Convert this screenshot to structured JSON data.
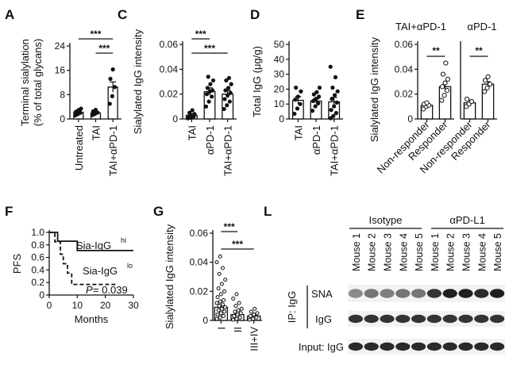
{
  "chart_data": [
    {
      "panel": "A",
      "type": "bar",
      "ylabel": "Terminal sialylation",
      "ylabel2": "(% of total glycans)",
      "ylim": [
        0,
        24
      ],
      "yticks": [
        0,
        8,
        16,
        24
      ],
      "tick_labels": [
        "0",
        "8",
        "16",
        "24"
      ],
      "categories": [
        "Untreated",
        "TAI",
        "TAI+αPD-1"
      ],
      "values": [
        2.2,
        2.0,
        10.5
      ],
      "errors": [
        0.4,
        0.4,
        1.7
      ],
      "points": [
        [
          1.2,
          1.6,
          2.0,
          2.4,
          2.9,
          3.4,
          1.8,
          2.6
        ],
        [
          1.3,
          1.7,
          2.1,
          2.5,
          3.0
        ],
        [
          5.0,
          7.5,
          10.5,
          13.2,
          16.3
        ]
      ],
      "comparisons": [
        {
          "pair": [
            0,
            2
          ],
          "label": "***"
        },
        {
          "pair": [
            1,
            2
          ],
          "label": "***"
        }
      ]
    },
    {
      "panel": "C",
      "type": "bar",
      "ylabel": "Sialylated IgG intensity",
      "ylim": [
        0,
        0.06
      ],
      "yticks": [
        0,
        0.02,
        0.04,
        0.06
      ],
      "tick_labels": [
        "0",
        "0.02",
        "0.04",
        "0.06"
      ],
      "categories": [
        "TAI",
        "αPD-1",
        "TAI+αPD-1"
      ],
      "values": [
        0.003,
        0.022,
        0.02
      ],
      "errors": [
        0.001,
        0.003,
        0.003
      ],
      "points": [
        [
          0.0005,
          0.001,
          0.002,
          0.002,
          0.003,
          0.004,
          0.005,
          0.007
        ],
        [
          0.01,
          0.014,
          0.018,
          0.02,
          0.022,
          0.023,
          0.025,
          0.028,
          0.031,
          0.034
        ],
        [
          0.008,
          0.011,
          0.014,
          0.016,
          0.019,
          0.021,
          0.023,
          0.025,
          0.028,
          0.031,
          0.033
        ]
      ],
      "comparisons": [
        {
          "pair": [
            0,
            1
          ],
          "label": "***"
        },
        {
          "pair": [
            0,
            2
          ],
          "label": "***"
        }
      ]
    },
    {
      "panel": "D",
      "type": "bar",
      "ylabel": "Total IgG (μg/g)",
      "ylim": [
        0,
        50
      ],
      "yticks": [
        0,
        10,
        20,
        30,
        40,
        50
      ],
      "tick_labels": [
        "0",
        "10",
        "20",
        "30",
        "40",
        "50"
      ],
      "categories": [
        "TAI",
        "αPD-1",
        "TAI+αPD-1"
      ],
      "values": [
        12.5,
        12.0,
        11.5
      ],
      "errors": [
        2.5,
        1.5,
        3.0
      ],
      "points": [
        [
          3.5,
          7.0,
          10.0,
          13.0,
          15.0,
          18.5,
          21.0
        ],
        [
          5.5,
          8.5,
          10.5,
          12.0,
          13.5,
          15.0,
          16.5,
          18.0,
          21.0
        ],
        [
          0.5,
          2.0,
          4.0,
          6.0,
          8.5,
          11.0,
          13.5,
          16.0,
          18.5,
          21.0,
          28.0,
          35.0
        ]
      ]
    },
    {
      "panel": "E",
      "type": "bar",
      "ylabel": "Sialylated IgG intensity",
      "ylim": [
        0,
        0.06
      ],
      "yticks": [
        0,
        0.02,
        0.04,
        0.06
      ],
      "tick_labels": [
        "0",
        "0.02",
        "0.04",
        "0.06"
      ],
      "groups": [
        {
          "title": "TAI+αPD-1",
          "categories": [
            "Non-responder",
            "Responder"
          ],
          "values": [
            0.011,
            0.026
          ],
          "errors": [
            0.001,
            0.003
          ],
          "points": [
            [
              0.008,
              0.01,
              0.011,
              0.012,
              0.013
            ],
            [
              0.015,
              0.019,
              0.023,
              0.026,
              0.029,
              0.032,
              0.036,
              0.045
            ]
          ],
          "comparison": "**"
        },
        {
          "title": "αPD-1",
          "categories": [
            "Non-responder",
            "Responder"
          ],
          "values": [
            0.013,
            0.028
          ],
          "errors": [
            0.002,
            0.002
          ],
          "points": [
            [
              0.01,
              0.012,
              0.014,
              0.016
            ],
            [
              0.022,
              0.025,
              0.028,
              0.031,
              0.034
            ]
          ],
          "comparison": "**"
        }
      ]
    },
    {
      "panel": "F",
      "type": "line",
      "ylabel": "PFS",
      "xlabel": "Months",
      "xlim": [
        0,
        30
      ],
      "ylim": [
        0,
        1.0
      ],
      "xticks": [
        0,
        10,
        20,
        30
      ],
      "xtick_labels": [
        "0",
        "10",
        "20",
        "30"
      ],
      "yticks": [
        0,
        0.2,
        0.4,
        0.6,
        0.8,
        1.0
      ],
      "ytick_labels": [
        "0",
        "0.2",
        "0.4",
        "0.6",
        "0.8",
        "1.0"
      ],
      "series": [
        {
          "name": "Sia-IgG",
          "sup": "hi",
          "style": "solid",
          "x": [
            0,
            3,
            3,
            10,
            10,
            30
          ],
          "y": [
            1.0,
            1.0,
            0.86,
            0.86,
            0.71,
            0.71
          ]
        },
        {
          "name": "Sia-IgG",
          "sup": "lo",
          "style": "dashed",
          "x": [
            0,
            2,
            2,
            4,
            4,
            5,
            5,
            6.5,
            6.5,
            8,
            8,
            24
          ],
          "y": [
            1.0,
            1.0,
            0.85,
            0.85,
            0.65,
            0.65,
            0.5,
            0.5,
            0.35,
            0.35,
            0.17,
            0.17
          ]
        }
      ],
      "annotation": {
        "prefix": "P",
        "text": " = 0.039"
      }
    },
    {
      "panel": "G",
      "type": "bar",
      "ylabel": "Sialylated IgG intensity",
      "ylim": [
        0,
        0.06
      ],
      "yticks": [
        0,
        0.02,
        0.04,
        0.06
      ],
      "tick_labels": [
        "0",
        "0.02",
        "0.04",
        "0.06"
      ],
      "categories": [
        "I",
        "II",
        "III+IV"
      ],
      "values": [
        0.009,
        0.004,
        0.003
      ],
      "errors": [
        0.001,
        0.0005,
        0.0005
      ],
      "points": [
        [
          0.001,
          0.002,
          0.003,
          0.004,
          0.005,
          0.006,
          0.007,
          0.008,
          0.009,
          0.01,
          0.011,
          0.012,
          0.013,
          0.014,
          0.016,
          0.018,
          0.02,
          0.022,
          0.025,
          0.028,
          0.032,
          0.036,
          0.04,
          0.044
        ],
        [
          0.0005,
          0.001,
          0.002,
          0.003,
          0.004,
          0.005,
          0.006,
          0.007,
          0.008,
          0.01,
          0.012,
          0.015,
          0.018
        ],
        [
          0.0005,
          0.001,
          0.002,
          0.003,
          0.004,
          0.005,
          0.006,
          0.008
        ]
      ],
      "comparisons": [
        {
          "pair": [
            0,
            1
          ],
          "label": "***"
        },
        {
          "pair": [
            0,
            2
          ],
          "label": "***"
        }
      ]
    },
    {
      "panel": "L",
      "type": "table",
      "groups": [
        {
          "label": "Isotype",
          "lanes": 5
        },
        {
          "label": "αPD-L1",
          "lanes": 5
        }
      ],
      "lanes": [
        "Mouse 1",
        "Mouse 2",
        "Mouse 3",
        "Mouse 4",
        "Mouse 5",
        "Mouse 1",
        "Mouse 2",
        "Mouse 3",
        "Mouse 4",
        "Mouse 5"
      ],
      "bracket_label": "IP: IgG",
      "rows": [
        {
          "label": "SNA",
          "intensity": [
            0.45,
            0.55,
            0.5,
            0.55,
            0.55,
            0.85,
            0.95,
            0.95,
            0.9,
            0.95
          ]
        },
        {
          "label": "IgG",
          "intensity": [
            0.85,
            0.85,
            0.85,
            0.85,
            0.85,
            0.85,
            0.85,
            0.85,
            0.85,
            0.85
          ]
        },
        {
          "label": "Input: IgG",
          "intensity": [
            0.9,
            0.9,
            0.9,
            0.9,
            0.9,
            0.9,
            0.9,
            0.9,
            0.9,
            0.9
          ]
        }
      ]
    }
  ]
}
